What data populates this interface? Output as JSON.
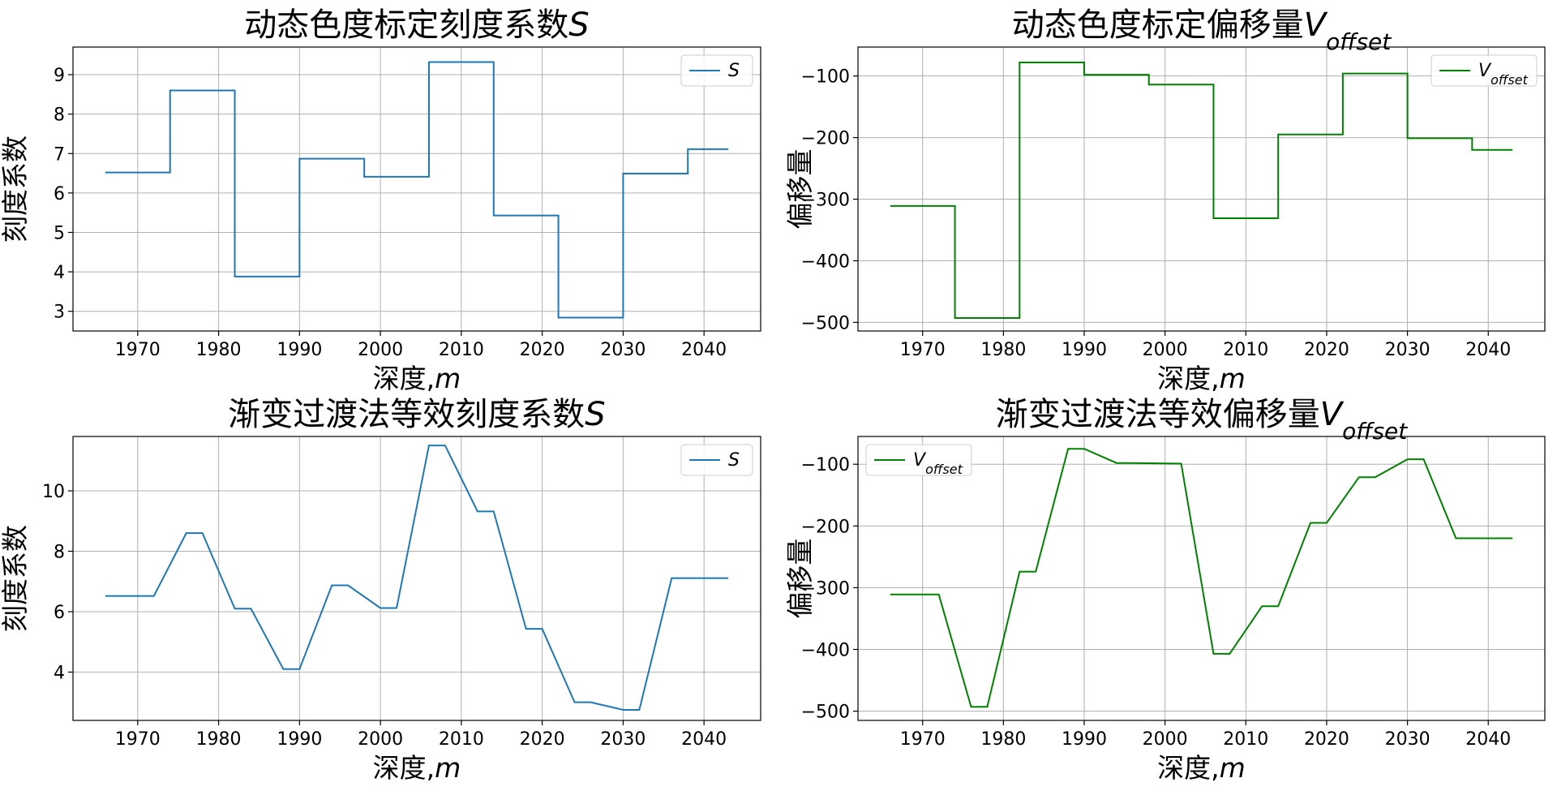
{
  "chart_data": [
    {
      "type": "line",
      "title_main": "动态色度标定刻度系数",
      "title_var": "S",
      "title_sub": "",
      "xlabel_main": "深度,",
      "xlabel_var": "m",
      "ylabel": "刻度系数",
      "xlim": [
        1962,
        2047
      ],
      "ylim": [
        2.5,
        9.7
      ],
      "xticks": [
        1970,
        1980,
        1990,
        2000,
        2010,
        2020,
        2030,
        2040
      ],
      "yticks": [
        3,
        4,
        5,
        6,
        7,
        8,
        9
      ],
      "grid": true,
      "legend_placement": "upper-right",
      "series": [
        {
          "name_var": "S",
          "name_sub": "",
          "color": "#1f77b4",
          "x": [
            1966,
            1974,
            1974,
            1982,
            1982,
            1990,
            1990,
            1998,
            1998,
            2006,
            2006,
            2014,
            2014,
            2022,
            2022,
            2030,
            2030,
            2038,
            2038,
            2043
          ],
          "y": [
            6.52,
            6.52,
            8.6,
            8.6,
            3.88,
            3.88,
            6.87,
            6.87,
            6.41,
            6.41,
            9.32,
            9.32,
            5.43,
            5.43,
            2.84,
            2.84,
            6.49,
            6.49,
            7.11,
            7.11
          ]
        }
      ]
    },
    {
      "type": "line",
      "title_main": "动态色度标定偏移量",
      "title_var": "V",
      "title_sub": "offset",
      "xlabel_main": "深度,",
      "xlabel_var": "m",
      "ylabel": "偏移量",
      "xlim": [
        1962,
        2047
      ],
      "ylim": [
        -514,
        -53
      ],
      "xticks": [
        1970,
        1980,
        1990,
        2000,
        2010,
        2020,
        2030,
        2040
      ],
      "yticks": [
        -500,
        -400,
        -300,
        -200,
        -100
      ],
      "ytick_labels": [
        "−500",
        "−400",
        "−300",
        "−200",
        "−100"
      ],
      "grid": true,
      "legend_placement": "upper-right",
      "series": [
        {
          "name_var": "V",
          "name_sub": "offset",
          "color": "#008000",
          "x": [
            1966,
            1974,
            1974,
            1982,
            1982,
            1990,
            1990,
            1998,
            1998,
            2006,
            2006,
            2014,
            2014,
            2022,
            2022,
            2030,
            2030,
            2038,
            2038,
            2043
          ],
          "y": [
            -311,
            -311,
            -493,
            -493,
            -78,
            -78,
            -98,
            -98,
            -114,
            -114,
            -331,
            -331,
            -195,
            -195,
            -96,
            -96,
            -201,
            -201,
            -220,
            -220
          ]
        }
      ]
    },
    {
      "type": "line",
      "title_main": "渐变过渡法等效刻度系数",
      "title_var": "S",
      "title_sub": "",
      "xlabel_main": "深度,",
      "xlabel_var": "m",
      "ylabel": "刻度系数",
      "xlim": [
        1962,
        2047
      ],
      "ylim": [
        2.4,
        11.8
      ],
      "xticks": [
        1970,
        1980,
        1990,
        2000,
        2010,
        2020,
        2030,
        2040
      ],
      "yticks": [
        4,
        6,
        8,
        10
      ],
      "grid": true,
      "legend_placement": "upper-right",
      "series": [
        {
          "name_var": "S",
          "name_sub": "",
          "color": "#1f77b4",
          "x": [
            1966,
            1972,
            1976,
            1978,
            1982,
            1984,
            1988,
            1990,
            1994,
            1996,
            2000,
            2002,
            2006,
            2008,
            2012,
            2014,
            2018,
            2020,
            2024,
            2026,
            2030,
            2032,
            2036,
            2038,
            2043
          ],
          "y": [
            6.52,
            6.52,
            8.6,
            8.6,
            6.1,
            6.1,
            4.1,
            4.1,
            6.87,
            6.87,
            6.12,
            6.12,
            11.5,
            11.5,
            9.32,
            9.32,
            5.43,
            5.43,
            3.0,
            3.0,
            2.75,
            2.75,
            7.11,
            7.11,
            7.11
          ]
        }
      ]
    },
    {
      "type": "line",
      "title_main": "渐变过渡法等效偏移量",
      "title_var": "V",
      "title_sub": "offset",
      "xlabel_main": "深度,",
      "xlabel_var": "m",
      "ylabel": "偏移量",
      "xlim": [
        1962,
        2047
      ],
      "ylim": [
        -515,
        -55
      ],
      "xticks": [
        1970,
        1980,
        1990,
        2000,
        2010,
        2020,
        2030,
        2040
      ],
      "yticks": [
        -500,
        -400,
        -300,
        -200,
        -100
      ],
      "ytick_labels": [
        "−500",
        "−400",
        "−300",
        "−200",
        "−100"
      ],
      "grid": true,
      "legend_placement": "upper-left",
      "series": [
        {
          "name_var": "V",
          "name_sub": "offset",
          "color": "#008000",
          "x": [
            1966,
            1972,
            1976,
            1978,
            1982,
            1984,
            1988,
            1990,
            1994,
            1996,
            2002,
            2006,
            2008,
            2012,
            2014,
            2018,
            2020,
            2024,
            2026,
            2030,
            2032,
            2036,
            2038,
            2043
          ],
          "y": [
            -311,
            -311,
            -493,
            -493,
            -274,
            -274,
            -75,
            -75,
            -98,
            -98,
            -99,
            -407,
            -407,
            -330,
            -330,
            -195,
            -195,
            -121,
            -121,
            -92,
            -92,
            -220,
            -220,
            -220
          ]
        }
      ]
    }
  ]
}
